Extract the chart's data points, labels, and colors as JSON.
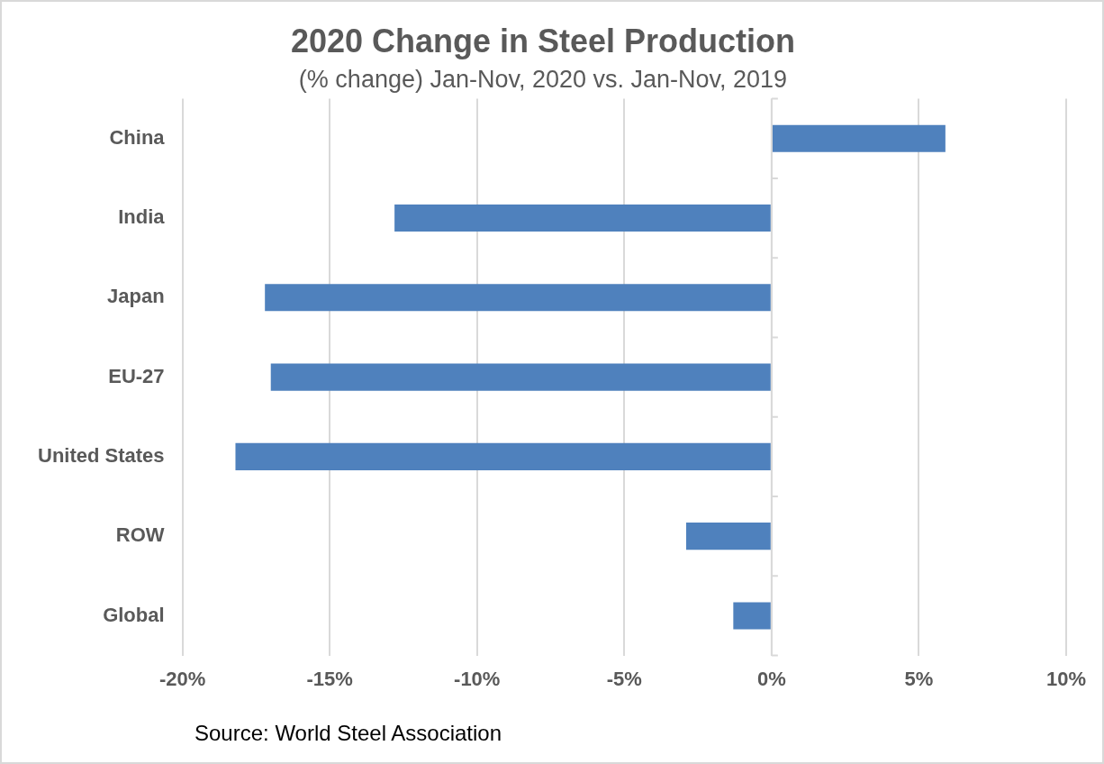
{
  "chart_data": {
    "type": "bar",
    "orientation": "horizontal",
    "title": "2020 Change in Steel Production",
    "subtitle": "(% change) Jan-Nov, 2020 vs. Jan-Nov, 2019",
    "categories": [
      "China",
      "India",
      "Japan",
      "EU-27",
      "United States",
      "ROW",
      "Global"
    ],
    "values": [
      5.9,
      -12.8,
      -17.2,
      -17.0,
      -18.2,
      -2.9,
      -1.3
    ],
    "color": "#4f81bd",
    "xlim": [
      -20,
      10
    ],
    "xticks": [
      {
        "value": -20,
        "label": "-20%"
      },
      {
        "value": -15,
        "label": "-15%"
      },
      {
        "value": -10,
        "label": "-10%"
      },
      {
        "value": -5,
        "label": "-5%"
      },
      {
        "value": 0,
        "label": "0%"
      },
      {
        "value": 5,
        "label": "5%"
      },
      {
        "value": 10,
        "label": "10%"
      }
    ],
    "grid": "x",
    "legend": false,
    "annotations": [
      "Source: World Steel Association"
    ]
  }
}
